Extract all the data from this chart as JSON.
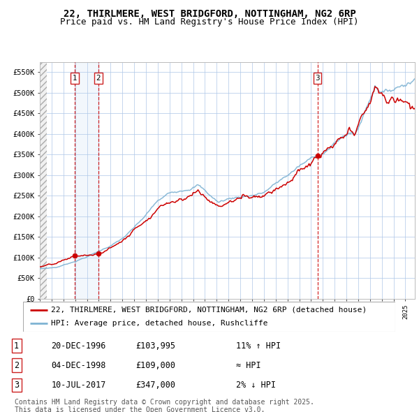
{
  "title_line1": "22, THIRLMERE, WEST BRIDGFORD, NOTTINGHAM, NG2 6RP",
  "title_line2": "Price paid vs. HM Land Registry's House Price Index (HPI)",
  "x_start_year": 1994,
  "x_end_year": 2025,
  "y_min": 0,
  "y_max": 575000,
  "y_ticks": [
    0,
    50000,
    100000,
    150000,
    200000,
    250000,
    300000,
    350000,
    400000,
    450000,
    500000,
    550000
  ],
  "y_tick_labels": [
    "£0",
    "£50K",
    "£100K",
    "£150K",
    "£200K",
    "£250K",
    "£300K",
    "£350K",
    "£400K",
    "£450K",
    "£500K",
    "£550K"
  ],
  "transaction_prices": [
    103995,
    109000,
    347000
  ],
  "transaction_labels": [
    "1",
    "2",
    "3"
  ],
  "background_color": "#ffffff",
  "plot_bg_color": "#ffffff",
  "grid_color": "#aec6e8",
  "line_red_color": "#cc0000",
  "line_blue_color": "#7fb3d3",
  "vline_color": "#cc0000",
  "legend_line1": "22, THIRLMERE, WEST BRIDGFORD, NOTTINGHAM, NG2 6RP (detached house)",
  "legend_line2": "HPI: Average price, detached house, Rushcliffe",
  "table_data": [
    [
      "1",
      "20-DEC-1996",
      "£103,995",
      "11% ↑ HPI"
    ],
    [
      "2",
      "04-DEC-1998",
      "£109,000",
      "≈ HPI"
    ],
    [
      "3",
      "10-JUL-2017",
      "£347,000",
      "2% ↓ HPI"
    ]
  ],
  "footer_text": "Contains HM Land Registry data © Crown copyright and database right 2025.\nThis data is licensed under the Open Government Licence v3.0.",
  "title_fontsize": 10,
  "subtitle_fontsize": 9,
  "legend_fontsize": 8,
  "table_fontsize": 8.5,
  "footer_fontsize": 7
}
